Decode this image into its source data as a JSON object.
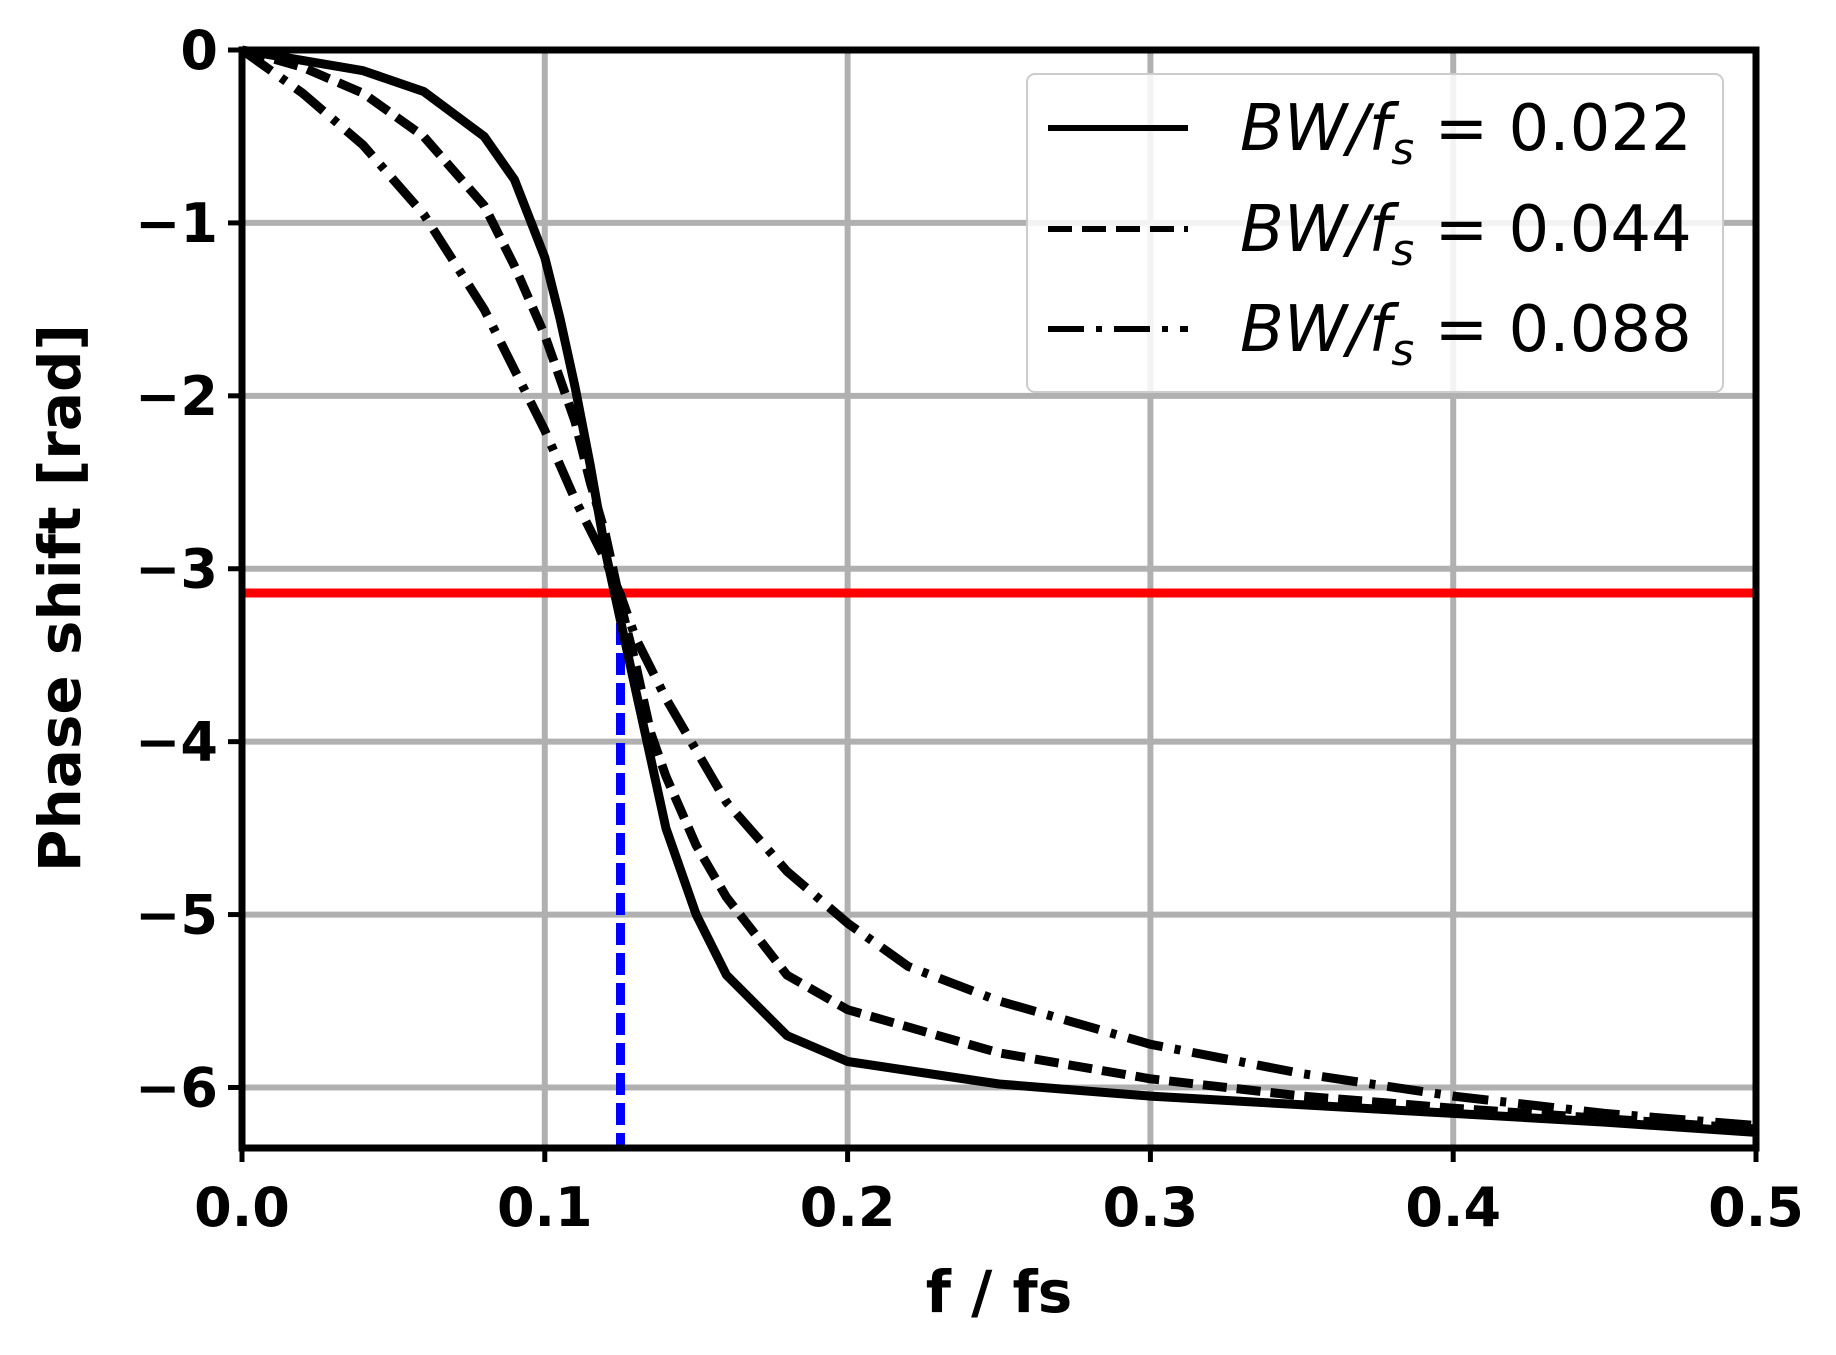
{
  "chart_data": {
    "type": "line",
    "xlabel": "f / fs",
    "ylabel": "Phase shift [rad]",
    "xlim": [
      0.0,
      0.5
    ],
    "ylim": [
      -6.35,
      0.0
    ],
    "xticks": [
      0.0,
      0.1,
      0.2,
      0.3,
      0.4,
      0.5
    ],
    "xtick_labels": [
      "0.0",
      "0.1",
      "0.2",
      "0.3",
      "0.4",
      "0.5"
    ],
    "yticks": [
      0,
      -1,
      -2,
      -3,
      -4,
      -5,
      -6
    ],
    "ytick_labels": [
      "0",
      "−1",
      "−2",
      "−3",
      "−4",
      "−5",
      "−6"
    ],
    "grid": true,
    "legend_position": "top-right",
    "series": [
      {
        "name": "BW/fs = 0.022",
        "legend": {
          "italic": "BW",
          "slash": "/",
          "f": "f",
          "sub": "s",
          "rest": " = 0.022"
        },
        "style": "solid",
        "color": "#000000",
        "x": [
          0.0,
          0.02,
          0.04,
          0.06,
          0.08,
          0.09,
          0.1,
          0.105,
          0.11,
          0.115,
          0.12,
          0.125,
          0.13,
          0.135,
          0.14,
          0.15,
          0.16,
          0.18,
          0.2,
          0.25,
          0.3,
          0.35,
          0.4,
          0.45,
          0.5
        ],
        "y": [
          0.0,
          -0.06,
          -0.12,
          -0.24,
          -0.5,
          -0.75,
          -1.2,
          -1.55,
          -1.95,
          -2.4,
          -2.9,
          -3.3,
          -3.7,
          -4.1,
          -4.5,
          -5.0,
          -5.35,
          -5.7,
          -5.85,
          -5.98,
          -6.05,
          -6.1,
          -6.15,
          -6.2,
          -6.26
        ]
      },
      {
        "name": "BW/fs = 0.044",
        "legend": {
          "italic": "BW",
          "slash": "/",
          "f": "f",
          "sub": "s",
          "rest": " = 0.044"
        },
        "style": "dashed",
        "color": "#000000",
        "x": [
          0.0,
          0.02,
          0.04,
          0.06,
          0.08,
          0.09,
          0.1,
          0.11,
          0.115,
          0.12,
          0.125,
          0.13,
          0.135,
          0.14,
          0.15,
          0.16,
          0.18,
          0.2,
          0.25,
          0.3,
          0.35,
          0.4,
          0.45,
          0.5
        ],
        "y": [
          0.0,
          -0.1,
          -0.25,
          -0.5,
          -0.9,
          -1.25,
          -1.65,
          -2.15,
          -2.5,
          -2.8,
          -3.2,
          -3.55,
          -3.95,
          -4.2,
          -4.6,
          -4.9,
          -5.35,
          -5.55,
          -5.8,
          -5.95,
          -6.05,
          -6.12,
          -6.18,
          -6.24
        ]
      },
      {
        "name": "BW/fs = 0.088",
        "legend": {
          "italic": "BW",
          "slash": "/",
          "f": "f",
          "sub": "s",
          "rest": " = 0.088"
        },
        "style": "dashdot",
        "color": "#000000",
        "x": [
          0.0,
          0.02,
          0.04,
          0.06,
          0.08,
          0.09,
          0.1,
          0.11,
          0.12,
          0.125,
          0.13,
          0.14,
          0.15,
          0.16,
          0.18,
          0.2,
          0.22,
          0.25,
          0.3,
          0.35,
          0.4,
          0.45,
          0.5
        ],
        "y": [
          0.0,
          -0.25,
          -0.55,
          -0.95,
          -1.5,
          -1.85,
          -2.2,
          -2.6,
          -2.95,
          -3.15,
          -3.4,
          -3.75,
          -4.05,
          -4.35,
          -4.75,
          -5.05,
          -5.3,
          -5.5,
          -5.75,
          -5.92,
          -6.05,
          -6.15,
          -6.22
        ]
      }
    ],
    "reference_lines": [
      {
        "orientation": "horizontal",
        "y": -3.14,
        "color": "#ff0000",
        "style": "solid"
      },
      {
        "orientation": "vertical",
        "x": 0.125,
        "color": "#0000ff",
        "style": "dashed"
      }
    ]
  }
}
